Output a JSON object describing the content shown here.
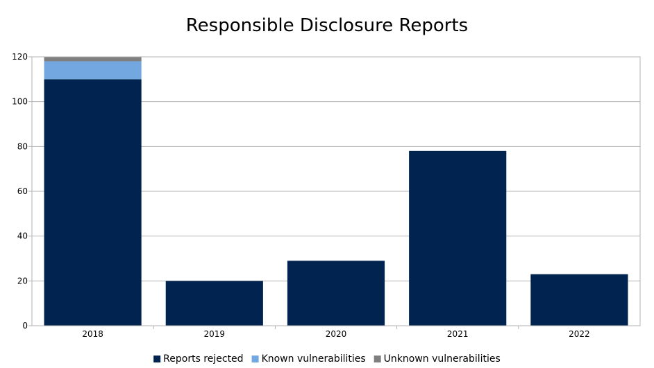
{
  "chart_data": {
    "type": "bar",
    "stacked": true,
    "title": "Responsible Disclosure Reports",
    "xlabel": "",
    "ylabel": "",
    "categories": [
      "2018",
      "2019",
      "2020",
      "2021",
      "2022"
    ],
    "series": [
      {
        "name": "Reports rejected",
        "values": [
          110,
          20,
          29,
          78,
          23
        ],
        "color": "#00244f"
      },
      {
        "name": "Known vulnerabilities",
        "values": [
          8,
          0,
          0,
          0,
          0
        ],
        "color": "#72a8df"
      },
      {
        "name": "Unknown vulnerabilities",
        "values": [
          2,
          0,
          0,
          0,
          0
        ],
        "color": "#7f7f7f"
      }
    ],
    "ylim": [
      0,
      120
    ],
    "yticks": [
      0,
      20,
      40,
      60,
      80,
      100,
      120
    ],
    "grid": true,
    "legend_position": "bottom"
  }
}
